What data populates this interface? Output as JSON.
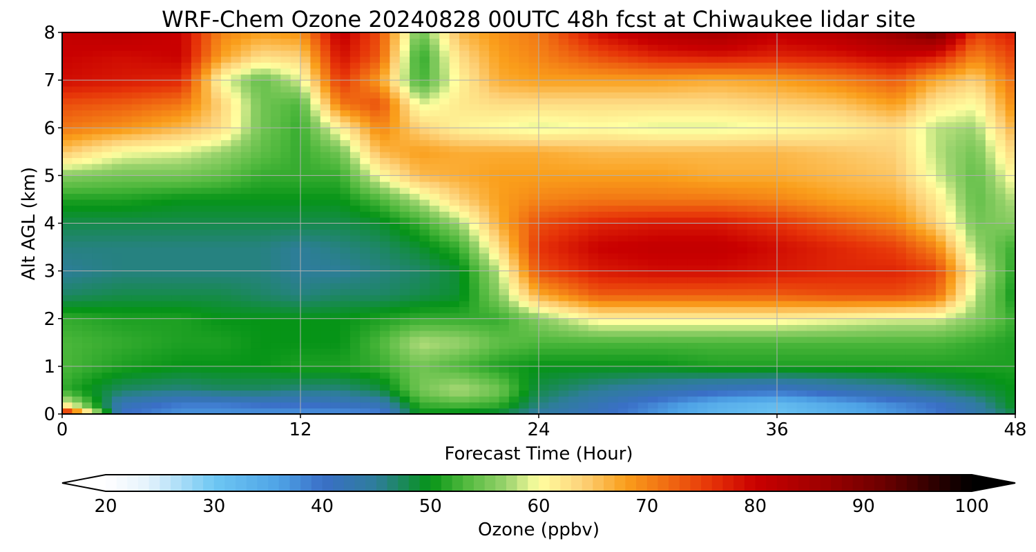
{
  "chart_data": {
    "type": "heatmap",
    "title": "WRF-Chem Ozone  20240828 00UTC 48h fcst at Chiwaukee lidar site",
    "xlabel": "Forecast Time (Hour)",
    "ylabel": "Alt AGL (km)",
    "xlim": [
      0,
      48
    ],
    "ylim": [
      0,
      8
    ],
    "x_ticks": [
      "0",
      "12",
      "24",
      "36",
      "48"
    ],
    "y_ticks": [
      "0",
      "1",
      "2",
      "3",
      "4",
      "5",
      "6",
      "7",
      "8"
    ],
    "grid": true,
    "x": [
      0,
      3,
      6,
      8,
      10,
      12,
      14,
      16,
      18,
      20,
      22,
      24,
      27,
      30,
      33,
      36,
      39,
      42,
      44,
      46,
      48
    ],
    "y": [
      0,
      0.2,
      0.5,
      1,
      1.5,
      2,
      2.5,
      3,
      3.5,
      4,
      4.5,
      5,
      5.5,
      6,
      6.5,
      7,
      7.5,
      8
    ],
    "z": [
      [
        84,
        40,
        37,
        37,
        37,
        37,
        37,
        38,
        50,
        49,
        48,
        44,
        41,
        37,
        33,
        31,
        34,
        37,
        39,
        43,
        48
      ],
      [
        62,
        42,
        39,
        39,
        40,
        40,
        41,
        42,
        52,
        53,
        52,
        46,
        42,
        38,
        34,
        32,
        35,
        38,
        40,
        44,
        50
      ],
      [
        52,
        47,
        46,
        47,
        47,
        46,
        46,
        48,
        55,
        58,
        55,
        48,
        45,
        43,
        41,
        40,
        42,
        44,
        46,
        48,
        50
      ],
      [
        53,
        51,
        50,
        50,
        50,
        51,
        51,
        52,
        55,
        53,
        51,
        50,
        50,
        50,
        51,
        51,
        51,
        51,
        51,
        51,
        51
      ],
      [
        53,
        52,
        51,
        51,
        50,
        50,
        50,
        53,
        58,
        57,
        54,
        53,
        53,
        53,
        53,
        53,
        53,
        53,
        53,
        52,
        51
      ],
      [
        52,
        51,
        51,
        50,
        50,
        50,
        50,
        51,
        52,
        52,
        52,
        56,
        61,
        61,
        61,
        61,
        60,
        59,
        59,
        56,
        52
      ],
      [
        47,
        48,
        48,
        48,
        47,
        46,
        47,
        47,
        48,
        49,
        56,
        67,
        73,
        73,
        73,
        73,
        74,
        74,
        72,
        58,
        50
      ],
      [
        45,
        46,
        46,
        46,
        46,
        45,
        45,
        46,
        47,
        49,
        58,
        74,
        78,
        79,
        79,
        78,
        77,
        77,
        75,
        60,
        51
      ],
      [
        46,
        46,
        46,
        46,
        46,
        45,
        46,
        47,
        49,
        52,
        63,
        76,
        80,
        81,
        81,
        79,
        77,
        75,
        70,
        57,
        52
      ],
      [
        48,
        48,
        48,
        48,
        48,
        48,
        48,
        49,
        52,
        57,
        67,
        74,
        77,
        78,
        78,
        76,
        73,
        70,
        64,
        55,
        56
      ],
      [
        51,
        51,
        50,
        50,
        50,
        50,
        50,
        53,
        58,
        64,
        68,
        70,
        71,
        71,
        71,
        70,
        68,
        67,
        62,
        54,
        58
      ],
      [
        56,
        55,
        55,
        54,
        52,
        52,
        52,
        60,
        66,
        67,
        68,
        68,
        68,
        68,
        67,
        67,
        66,
        65,
        59,
        54,
        61
      ],
      [
        65,
        60,
        59,
        57,
        54,
        52,
        55,
        66,
        68,
        67,
        67,
        67,
        66,
        66,
        66,
        66,
        65,
        64,
        58,
        55,
        64
      ],
      [
        71,
        69,
        66,
        63,
        55,
        52,
        61,
        70,
        64,
        61,
        60,
        59,
        60,
        59,
        59,
        60,
        61,
        63,
        58,
        57,
        67
      ],
      [
        74,
        73,
        71,
        64,
        55,
        53,
        71,
        74,
        59,
        62,
        63,
        63,
        63,
        63,
        63,
        64,
        65,
        68,
        62,
        60,
        70
      ],
      [
        79,
        78,
        77,
        60,
        54,
        59,
        76,
        68,
        52,
        61,
        67,
        68,
        68,
        68,
        67,
        68,
        70,
        73,
        67,
        64,
        72
      ],
      [
        80,
        79,
        80,
        68,
        63,
        64,
        79,
        73,
        51,
        63,
        68,
        70,
        74,
        77,
        78,
        77,
        78,
        80,
        78,
        70,
        75
      ],
      [
        81,
        82,
        80,
        70,
        68,
        69,
        81,
        74,
        54,
        66,
        69,
        71,
        79,
        83,
        85,
        81,
        83,
        87,
        91,
        75,
        78
      ]
    ],
    "colorbar": {
      "label": "Ozone  (ppbv)",
      "min": 20,
      "max": 100,
      "ticks": [
        "20",
        "30",
        "40",
        "50",
        "60",
        "70",
        "80",
        "90",
        "100"
      ],
      "extend": "both"
    }
  },
  "colors": {
    "scale": [
      [
        20,
        "#ffffff"
      ],
      [
        24,
        "#e3f2fc"
      ],
      [
        30,
        "#6ec7f3"
      ],
      [
        36,
        "#4ea3e6"
      ],
      [
        40,
        "#3a6fc7"
      ],
      [
        45,
        "#2e7d9a"
      ],
      [
        50,
        "#069417"
      ],
      [
        53,
        "#4cb73b"
      ],
      [
        57,
        "#9ad36d"
      ],
      [
        60,
        "#ffffa0"
      ],
      [
        64,
        "#fdd27a"
      ],
      [
        68,
        "#fa9f1b"
      ],
      [
        72,
        "#f06a12"
      ],
      [
        76,
        "#e63208"
      ],
      [
        80,
        "#c90000"
      ],
      [
        86,
        "#a00000"
      ],
      [
        92,
        "#6a0000"
      ],
      [
        100,
        "#000000"
      ]
    ],
    "grid": "#b0b0b0"
  }
}
